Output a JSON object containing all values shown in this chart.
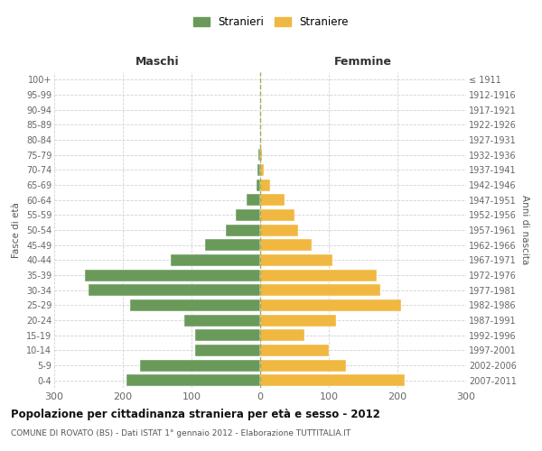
{
  "age_groups": [
    "0-4",
    "5-9",
    "10-14",
    "15-19",
    "20-24",
    "25-29",
    "30-34",
    "35-39",
    "40-44",
    "45-49",
    "50-54",
    "55-59",
    "60-64",
    "65-69",
    "70-74",
    "75-79",
    "80-84",
    "85-89",
    "90-94",
    "95-99",
    "100+"
  ],
  "birth_years": [
    "2007-2011",
    "2002-2006",
    "1997-2001",
    "1992-1996",
    "1987-1991",
    "1982-1986",
    "1977-1981",
    "1972-1976",
    "1967-1971",
    "1962-1966",
    "1957-1961",
    "1952-1956",
    "1947-1951",
    "1942-1946",
    "1937-1941",
    "1932-1936",
    "1927-1931",
    "1922-1926",
    "1917-1921",
    "1912-1916",
    "≤ 1911"
  ],
  "maschi": [
    195,
    175,
    95,
    95,
    110,
    190,
    250,
    255,
    130,
    80,
    50,
    35,
    20,
    5,
    4,
    2,
    0,
    0,
    0,
    0,
    0
  ],
  "femmine": [
    210,
    125,
    100,
    65,
    110,
    205,
    175,
    170,
    105,
    75,
    55,
    50,
    35,
    15,
    5,
    2,
    0,
    0,
    0,
    0,
    0
  ],
  "maschi_color": "#6a9a5a",
  "femmine_color": "#f0b840",
  "background_color": "#ffffff",
  "grid_color": "#cccccc",
  "title": "Popolazione per cittadinanza straniera per età e sesso - 2012",
  "subtitle": "COMUNE DI ROVATO (BS) - Dati ISTAT 1° gennaio 2012 - Elaborazione TUTTITALIA.IT",
  "xlabel_left": "Maschi",
  "xlabel_right": "Femmine",
  "ylabel_left": "Fasce di età",
  "ylabel_right": "Anni di nascita",
  "legend_maschi": "Stranieri",
  "legend_femmine": "Straniere",
  "xlim": 300
}
